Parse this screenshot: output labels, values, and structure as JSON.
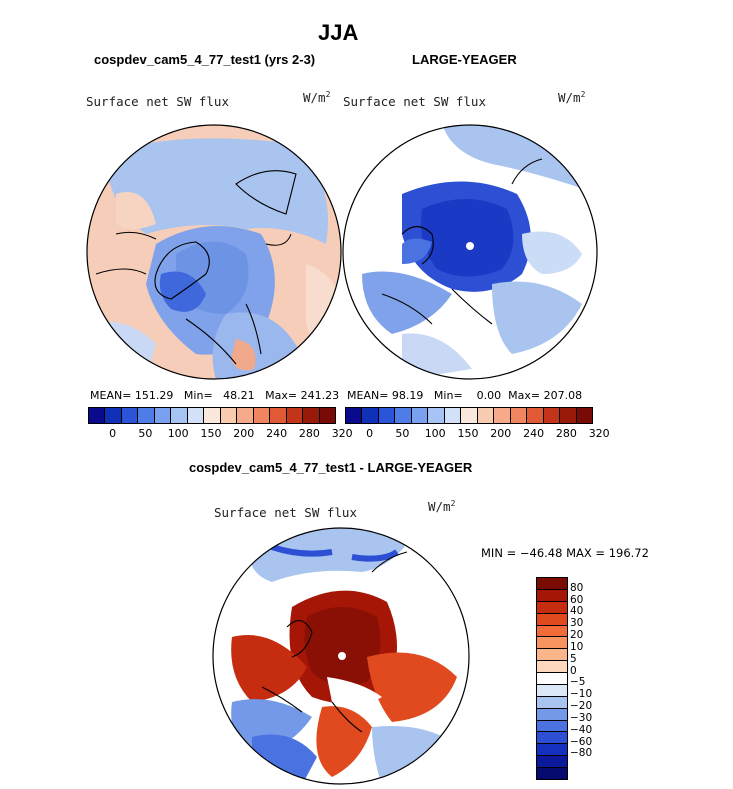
{
  "figure": {
    "main_title": "JJA",
    "field_label": "Surface net SW flux",
    "units_base": "W/m",
    "units_exp": "2"
  },
  "panels": {
    "left": {
      "title": "cospdev_cam5_4_77_test1 (yrs 2-3)",
      "mean_label": "MEAN=",
      "mean": "151.29",
      "min_label": "Min=",
      "min": "48.21",
      "max_label": "Max=",
      "max": "241.23"
    },
    "right": {
      "title": "LARGE-YEAGER",
      "mean_label": "MEAN=",
      "mean": "98.19",
      "min_label": "Min=",
      "min": "0.00",
      "max_label": "Max=",
      "max": "207.08"
    },
    "diff": {
      "title": "cospdev_cam5_4_77_test1 - LARGE-YEAGER",
      "minmax": "MIN = −46.48 MAX = 196.72"
    }
  },
  "colorbar_abs": {
    "colors": [
      "#0a0a8c",
      "#1030b8",
      "#2a55d8",
      "#4f7de8",
      "#7aa0f0",
      "#a6c3f3",
      "#d2e1f8",
      "#fbe8dc",
      "#f9ccb2",
      "#f6aa89",
      "#f0855f",
      "#e05a35",
      "#c2351b",
      "#9a1a0a",
      "#7a0a05"
    ],
    "labels": [
      "0",
      "50",
      "100",
      "150",
      "200",
      "240",
      "280",
      "320"
    ]
  },
  "colorbar_diff": {
    "colors": [
      "#7b0c04",
      "#a51607",
      "#c52c10",
      "#e04a1e",
      "#f26b38",
      "#f89460",
      "#fbb58b",
      "#fcd8bf",
      "#ffffff",
      "#dce8f7",
      "#a9c4ee",
      "#7399e8",
      "#4a72e0",
      "#2c4fd3",
      "#1430bd",
      "#0b1a9a",
      "#050a6e"
    ],
    "labels": [
      "80",
      "60",
      "40",
      "30",
      "20",
      "10",
      "5",
      "0",
      "−5",
      "−10",
      "−20",
      "−30",
      "−40",
      "−60",
      "−80"
    ]
  },
  "chart_data": [
    {
      "type": "heatmap",
      "title": "cospdev_cam5_4_77_test1 (yrs 2-3)",
      "field": "Surface net SW flux",
      "units": "W/m2",
      "projection": "north polar stereographic",
      "stats": {
        "mean": 151.29,
        "min": 48.21,
        "max": 241.23
      },
      "colorbar_levels": [
        0,
        50,
        100,
        150,
        200,
        240,
        280,
        320
      ]
    },
    {
      "type": "heatmap",
      "title": "LARGE-YEAGER",
      "field": "Surface net SW flux",
      "units": "W/m2",
      "projection": "north polar stereographic",
      "stats": {
        "mean": 98.19,
        "min": 0.0,
        "max": 207.08
      },
      "colorbar_levels": [
        0,
        50,
        100,
        150,
        200,
        240,
        280,
        320
      ]
    },
    {
      "type": "heatmap",
      "title": "cospdev_cam5_4_77_test1 - LARGE-YEAGER",
      "field": "Surface net SW flux",
      "units": "W/m2",
      "projection": "north polar stereographic",
      "stats": {
        "min": -46.48,
        "max": 196.72
      },
      "colorbar_levels": [
        80,
        60,
        40,
        30,
        20,
        10,
        5,
        0,
        -5,
        -10,
        -20,
        -30,
        -40,
        -60,
        -80
      ]
    }
  ]
}
